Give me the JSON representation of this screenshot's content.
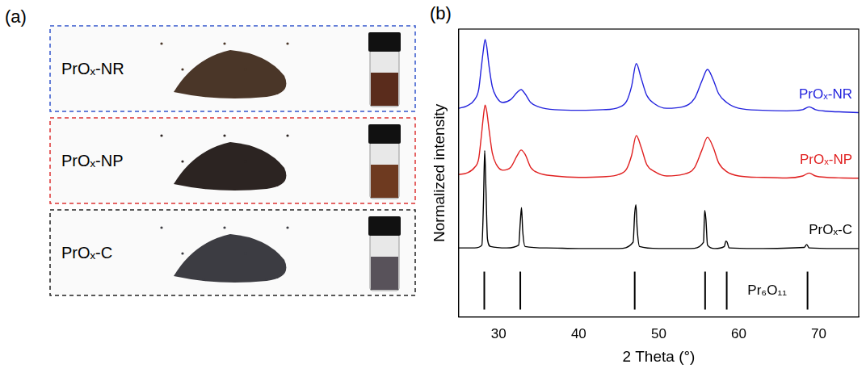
{
  "panel_a": {
    "letter": "(a)",
    "samples": [
      "PrOₓ-NR",
      "PrOₓ-NP",
      "PrOₓ-C"
    ]
  },
  "chart_data": {
    "letter": "(b)",
    "type": "line",
    "x_label": "2 Theta (°)",
    "y_label": "Normalized intensity",
    "xlim": [
      25,
      75
    ],
    "xticks": [
      30,
      40,
      50,
      60,
      70
    ],
    "ylim": [
      0,
      100
    ],
    "tick_labels": "x",
    "grid": false,
    "series": [
      {
        "name": "PrOₓ-NR",
        "color": "#2222dd",
        "x": [
          25,
          26,
          27,
          27.5,
          27.8,
          28.1,
          28.3,
          28.5,
          28.8,
          29.2,
          29.7,
          30.5,
          31.5,
          32.3,
          32.8,
          33.3,
          34,
          35,
          37,
          40,
          43,
          45,
          46,
          46.6,
          47.2,
          47.8,
          48.5,
          49.5,
          51,
          53,
          54.5,
          55.4,
          56.1,
          56.8,
          57.5,
          58.5,
          60,
          63,
          66,
          68,
          68.8,
          69.6,
          71,
          73,
          75
        ],
        "values": [
          72.5,
          73.3,
          75.5,
          79,
          86,
          93,
          96.4,
          94,
          87,
          80,
          76.5,
          74.5,
          75.5,
          78,
          79,
          77.5,
          74.5,
          73,
          72,
          71.8,
          72,
          72.8,
          75,
          80,
          88,
          83,
          77,
          74,
          72.5,
          73,
          76,
          82,
          86,
          82.5,
          77.5,
          74.5,
          72.5,
          71.8,
          71.6,
          72,
          73,
          72,
          71.5,
          71.2,
          71
        ]
      },
      {
        "name": "PrOₓ-NP",
        "color": "#e02020",
        "x": [
          25,
          26,
          27,
          27.5,
          27.8,
          28.1,
          28.3,
          28.5,
          28.8,
          29.2,
          29.7,
          30.5,
          31.5,
          32.3,
          32.8,
          33.3,
          34,
          35,
          37,
          40,
          43,
          45,
          46,
          46.6,
          47.2,
          47.8,
          48.5,
          49.5,
          51,
          53,
          54.5,
          55.4,
          56.1,
          56.8,
          57.5,
          58.5,
          60,
          63,
          66,
          68,
          68.8,
          69.6,
          71,
          73,
          75
        ],
        "values": [
          49.5,
          50,
          52,
          55,
          62,
          70,
          73.6,
          71.5,
          65,
          57,
          53,
          51,
          52,
          56,
          58,
          56.5,
          52,
          50,
          49,
          48.5,
          48.7,
          49.5,
          51.5,
          56,
          63,
          59,
          53,
          50.5,
          49,
          49.5,
          52,
          58,
          62.4,
          59,
          53.5,
          50.5,
          49,
          48.5,
          48.3,
          49,
          50,
          49,
          48.5,
          48.3,
          48.2
        ]
      },
      {
        "name": "PrOₓ-C",
        "color": "#000000",
        "x": [
          25,
          27,
          27.9,
          28.1,
          28.25,
          28.4,
          28.6,
          29,
          31,
          32.5,
          32.7,
          32.85,
          33.0,
          33.3,
          36,
          40,
          45,
          46.8,
          47.0,
          47.15,
          47.3,
          47.6,
          50,
          54,
          55.6,
          55.75,
          55.9,
          56.1,
          57,
          58.2,
          58.4,
          58.55,
          58.8,
          62,
          68.2,
          68.5,
          68.8,
          72,
          75
        ],
        "values": [
          24,
          24,
          25,
          40,
          57.8,
          45,
          27,
          24.5,
          24,
          25,
          33,
          38,
          30,
          24.5,
          24,
          23.8,
          23.8,
          26,
          36,
          39,
          31,
          24.5,
          23.8,
          23.8,
          26,
          37,
          34,
          25,
          23.8,
          24.5,
          26.4,
          26,
          24,
          23.8,
          24.2,
          25.2,
          24,
          23.8,
          23.8
        ]
      },
      {
        "name": "Pr₆O₁₁",
        "color": "#000000",
        "type": "stick",
        "x": [
          28.2,
          32.7,
          47.0,
          55.8,
          58.5,
          68.6
        ],
        "values": [
          15.8,
          15.8,
          15.8,
          15.8,
          15.8,
          15.8
        ],
        "base": 2.6
      }
    ]
  }
}
